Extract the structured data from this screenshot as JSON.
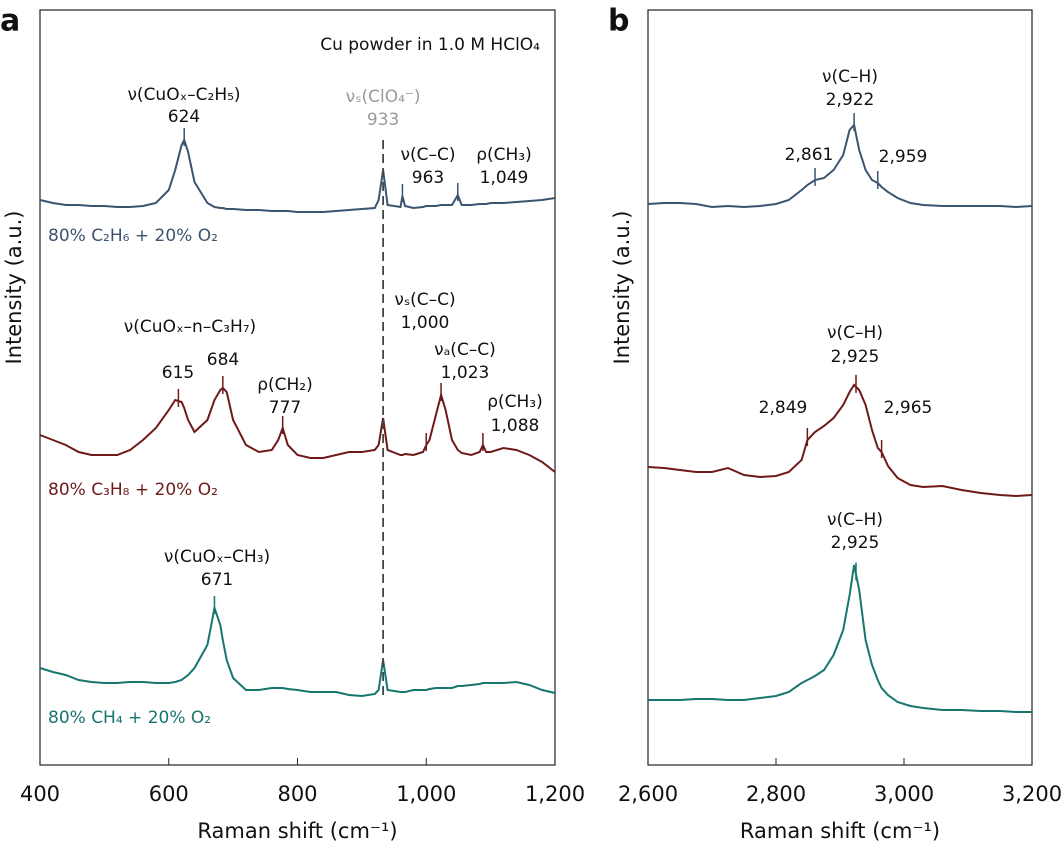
{
  "chart_data": [
    {
      "type": "line",
      "panel_label": "a",
      "note": "Cu powder in 1.0 M HClO₄",
      "xlabel": "Raman shift (cm⁻¹)",
      "ylabel": "Intensity (a.u.)",
      "xlim": [
        400,
        1200
      ],
      "xticks": [
        400,
        600,
        800,
        {
          "value": 1000,
          "label": "1,000"
        },
        {
          "value": 1200,
          "label": "1,200"
        }
      ],
      "ylim": [
        0,
        151
      ],
      "x": [
        400,
        420,
        440,
        460,
        480,
        500,
        520,
        540,
        560,
        580,
        600,
        610,
        620,
        624,
        630,
        640,
        660,
        671,
        680,
        684,
        690,
        700,
        720,
        740,
        760,
        770,
        777,
        785,
        800,
        820,
        840,
        860,
        880,
        900,
        920,
        926,
        933,
        940,
        960,
        963,
        967,
        980,
        995,
        1000,
        1005,
        1015,
        1023,
        1030,
        1040,
        1049,
        1055,
        1070,
        1083,
        1088,
        1093,
        1100,
        1120,
        1140,
        1160,
        1180,
        1200
      ],
      "series": [
        {
          "name": "80% C₂H₆ + 20% O₂",
          "color": "#3b5470",
          "values": [
            113,
            112.4,
            112,
            112,
            111.8,
            111.8,
            111.6,
            111.6,
            111.8,
            112.4,
            115,
            119,
            124,
            125,
            122.6,
            116.6,
            112.4,
            111.6,
            111.4,
            111.4,
            111.2,
            111.2,
            111,
            111,
            110.8,
            110.8,
            110.8,
            110.8,
            110.6,
            110.6,
            110.6,
            110.8,
            111,
            111.2,
            111.4,
            113,
            119,
            112,
            111.6,
            113.8,
            111.8,
            111.4,
            111.6,
            111.8,
            111.8,
            111.8,
            112,
            112,
            112,
            114,
            112,
            112,
            112.2,
            112.2,
            112.2,
            112.4,
            112.4,
            112.6,
            112.8,
            113,
            113.4
          ]
        },
        {
          "name": "80% C₃H₈ + 20% O₂",
          "color": "#6e1a1a",
          "values": [
            66,
            65,
            64,
            62.6,
            62,
            62,
            62,
            63,
            65,
            67.4,
            71,
            73,
            72.6,
            71.4,
            69,
            66.6,
            69,
            73,
            75,
            75.4,
            74.6,
            69,
            64,
            62.6,
            63,
            65,
            67.4,
            64,
            62,
            61.4,
            61.4,
            62,
            62.6,
            62.6,
            63,
            64,
            69.4,
            63,
            62,
            62,
            62.2,
            62,
            62.6,
            64,
            65,
            70,
            74,
            71,
            65,
            63,
            62.4,
            62,
            62.6,
            64,
            62.6,
            62.6,
            63.4,
            63,
            62,
            60.6,
            58.6
          ]
        },
        {
          "name": "80% CH₄ + 20% O₂",
          "color": "#17766e",
          "values": [
            19.4,
            18.6,
            18,
            17,
            16.6,
            16.4,
            16.4,
            16.6,
            16.6,
            16.4,
            16.4,
            16.6,
            17,
            17.4,
            18,
            19.4,
            24,
            31.4,
            28,
            25,
            21,
            17.4,
            15,
            15,
            15.4,
            15.4,
            15.4,
            15.2,
            15,
            14.6,
            14.6,
            14.6,
            14,
            13.8,
            14.2,
            15,
            21,
            15,
            14.6,
            14.6,
            14.6,
            15,
            15,
            15,
            15.2,
            15.4,
            15.4,
            15.4,
            15.4,
            15.8,
            15.8,
            16,
            16.2,
            16.4,
            16.4,
            16.4,
            16.4,
            16.6,
            16,
            15,
            14.4
          ]
        }
      ],
      "reference_line": {
        "text": "νₛ(ClO₄⁻)",
        "x": 933,
        "color": "#999999"
      },
      "annotations": [
        {
          "text": "ν(CuOₓ–C₂H₅)",
          "series": 0,
          "peaks": [
            624
          ]
        },
        {
          "text": "ν(C–C)",
          "series": 0,
          "peaks": [
            963
          ]
        },
        {
          "text": "ρ(CH₃)",
          "series": 0,
          "peaks": [
            {
              "value": 1049,
              "label": "1,049"
            }
          ]
        },
        {
          "text": "ν(CuOₓ–n–C₃H₇)",
          "series": 1,
          "peaks": [
            615,
            684
          ]
        },
        {
          "text": "ρ(CH₂)",
          "series": 1,
          "peaks": [
            777
          ]
        },
        {
          "text": "νₛ(C–C)",
          "series": 1,
          "peaks": [
            {
              "value": 1000,
              "label": "1,000"
            }
          ]
        },
        {
          "text": "νₐ(C–C)",
          "series": 1,
          "peaks": [
            {
              "value": 1023,
              "label": "1,023"
            }
          ]
        },
        {
          "text": "ρ(CH₃)",
          "series": 1,
          "peaks": [
            {
              "value": 1088,
              "label": "1,088"
            }
          ]
        },
        {
          "text": "ν(CuOₓ–CH₃)",
          "series": 2,
          "peaks": [
            671
          ]
        }
      ]
    },
    {
      "type": "line",
      "panel_label": "b",
      "xlabel": "Raman shift (cm⁻¹)",
      "ylabel": "Intensity (a.u.)",
      "xlim": [
        2600,
        3200
      ],
      "xticks": [
        {
          "value": 2600,
          "label": "2,600"
        },
        {
          "value": 2800,
          "label": "2,800"
        },
        {
          "value": 3000,
          "label": "3,000"
        },
        {
          "value": 3200,
          "label": "3,200"
        }
      ],
      "ylim": [
        0,
        151
      ],
      "x": [
        2600,
        2625,
        2650,
        2675,
        2700,
        2725,
        2750,
        2775,
        2800,
        2820,
        2840,
        2849,
        2861,
        2875,
        2890,
        2905,
        2915,
        2922,
        2930,
        2940,
        2950,
        2959,
        2965,
        2975,
        2990,
        3010,
        3030,
        3060,
        3090,
        3120,
        3150,
        3175,
        3200
      ],
      "series": [
        {
          "color": "#3b5470",
          "values": [
            112.2,
            112.4,
            112.4,
            112.2,
            111.6,
            111.8,
            111.6,
            111.8,
            112.2,
            113,
            115,
            116,
            117,
            117.4,
            119,
            122,
            127,
            128,
            123,
            119,
            117,
            116.4,
            115.6,
            114.6,
            113.4,
            112.4,
            112,
            111.8,
            111.8,
            111.8,
            111.8,
            111.6,
            111.8
          ]
        },
        {
          "color": "#6e1a1a",
          "values": [
            59.6,
            59.4,
            59,
            58.6,
            58.6,
            59.4,
            58,
            57.6,
            57.8,
            58.6,
            61,
            65,
            66.6,
            67.8,
            69.4,
            72,
            74.6,
            76,
            75,
            72,
            67,
            63.4,
            62.6,
            59.8,
            57.4,
            56,
            55.6,
            55.8,
            55,
            54.4,
            54,
            53.8,
            54
          ]
        },
        {
          "color": "#17766e",
          "values": [
            13,
            13,
            13,
            13.2,
            13.2,
            13,
            13,
            13.4,
            13.8,
            14.6,
            16.4,
            17,
            17.8,
            19,
            22,
            27,
            34,
            40,
            35,
            25,
            20,
            17,
            15.4,
            14,
            12.6,
            11.8,
            11.4,
            11,
            11,
            10.8,
            10.8,
            10.6,
            10.6
          ]
        }
      ],
      "annotations": [
        {
          "text": "ν(C–H)",
          "series": 0,
          "peaks": [
            {
              "value": 2922,
              "label": "2,922"
            }
          ]
        },
        {
          "series": 0,
          "peaks": [
            {
              "value": 2861,
              "label": "2,861"
            }
          ]
        },
        {
          "series": 0,
          "peaks": [
            {
              "value": 2959,
              "label": "2,959"
            }
          ]
        },
        {
          "text": "ν(C–H)",
          "series": 1,
          "peaks": [
            {
              "value": 2925,
              "label": "2,925"
            }
          ]
        },
        {
          "series": 1,
          "peaks": [
            {
              "value": 2849,
              "label": "2,849"
            }
          ]
        },
        {
          "series": 1,
          "peaks": [
            {
              "value": 2965,
              "label": "2,965"
            }
          ]
        },
        {
          "text": "ν(C–H)",
          "series": 2,
          "peaks": [
            {
              "value": 2925,
              "label": "2,925"
            }
          ]
        }
      ]
    }
  ]
}
